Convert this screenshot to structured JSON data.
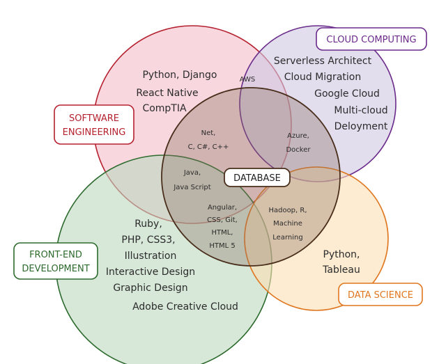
{
  "diagram": {
    "circles": [
      {
        "id": "software_engineering",
        "label_lines": [
          "SOFTWARE",
          "ENGINEERING"
        ],
        "color": "#b5202e",
        "fill": "#f2b6c3",
        "items": [
          "Python, Django",
          "React Native",
          "CompTIA"
        ]
      },
      {
        "id": "cloud_computing",
        "label_lines": [
          "CLOUD COMPUTING"
        ],
        "color": "#6a2a8a",
        "fill": "#cfc8e3",
        "items": [
          "Serverless Architect",
          "Cloud Migration",
          "Google Cloud",
          "Multi-cloud",
          "Deloyment"
        ]
      },
      {
        "id": "front_end_development",
        "label_lines": [
          "FRONT-END",
          "DEVELOPMENT"
        ],
        "color": "#2d6a2d",
        "fill": "#bcd9bf",
        "items": [
          "Ruby,",
          "PHP, CSS3,",
          "Illustration",
          "Interactive Design",
          "Graphic Design",
          "Adobe Creative Cloud"
        ]
      },
      {
        "id": "data_science",
        "label_lines": [
          "DATA SCIENCE"
        ],
        "color": "#e0761e",
        "fill": "#fbe0b4",
        "items": [
          "Python,",
          "Tableau"
        ]
      },
      {
        "id": "database",
        "label_lines": [
          "DATABASE"
        ],
        "color": "#4a2e1c",
        "fill": "#8a7060",
        "items": []
      }
    ],
    "overlaps": {
      "aws": [
        "AWS"
      ],
      "net": [
        "Net,",
        "C, C#, C++"
      ],
      "azure": [
        "Azure,",
        "Docker"
      ],
      "java": [
        "Java,",
        "Java Script"
      ],
      "angular": [
        "Angular,",
        "CSS, Git,",
        "HTML,",
        "HTML 5"
      ],
      "hadoop": [
        "Hadoop, R,",
        "Machine",
        "Learning"
      ]
    }
  }
}
